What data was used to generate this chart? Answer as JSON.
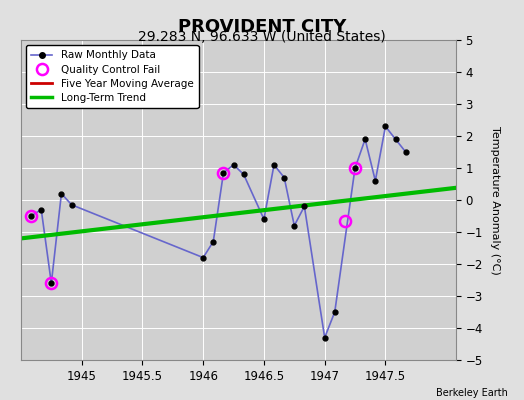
{
  "title": "PROVIDENT CITY",
  "subtitle": "29.283 N, 96.633 W (United States)",
  "attribution": "Berkeley Earth",
  "ylabel": "Temperature Anomaly (°C)",
  "ylim": [
    -5,
    5
  ],
  "xlim": [
    1944.5,
    1948.08
  ],
  "xticks": [
    1945,
    1945.5,
    1946,
    1946.5,
    1947,
    1947.5
  ],
  "yticks": [
    -5,
    -4,
    -3,
    -2,
    -1,
    0,
    1,
    2,
    3,
    4,
    5
  ],
  "raw_x": [
    1944.583,
    1944.667,
    1944.75,
    1944.833,
    1944.917,
    1946.0,
    1946.083,
    1946.167,
    1946.25,
    1946.333,
    1946.5,
    1946.583,
    1946.667,
    1946.75,
    1946.833,
    1947.0,
    1947.083,
    1947.25,
    1947.333,
    1947.417,
    1947.5,
    1947.583,
    1947.667
  ],
  "raw_y": [
    -0.5,
    -0.3,
    -2.6,
    0.2,
    -0.15,
    -1.8,
    -1.3,
    0.85,
    1.1,
    0.8,
    -0.6,
    1.1,
    0.7,
    -0.8,
    -0.2,
    -4.3,
    -3.5,
    1.0,
    1.9,
    0.6,
    2.3,
    1.9,
    1.5
  ],
  "qc_fail_x": [
    1944.583,
    1944.75,
    1946.167,
    1947.25,
    1947.167
  ],
  "qc_fail_y": [
    -0.5,
    -2.6,
    0.85,
    1.0,
    -0.65
  ],
  "trend_x": [
    1944.5,
    1948.08
  ],
  "trend_y": [
    -1.2,
    0.38
  ],
  "raw_color": "#0000cc",
  "raw_line_color": "#6666cc",
  "qc_color": "#ff00ff",
  "trend_color": "#00bb00",
  "moving_avg_color": "#cc0000",
  "background_color": "#e0e0e0",
  "plot_bg_color": "#d0d0d0",
  "grid_color": "#ffffff",
  "title_fontsize": 13,
  "subtitle_fontsize": 10,
  "label_fontsize": 8,
  "tick_fontsize": 8.5
}
